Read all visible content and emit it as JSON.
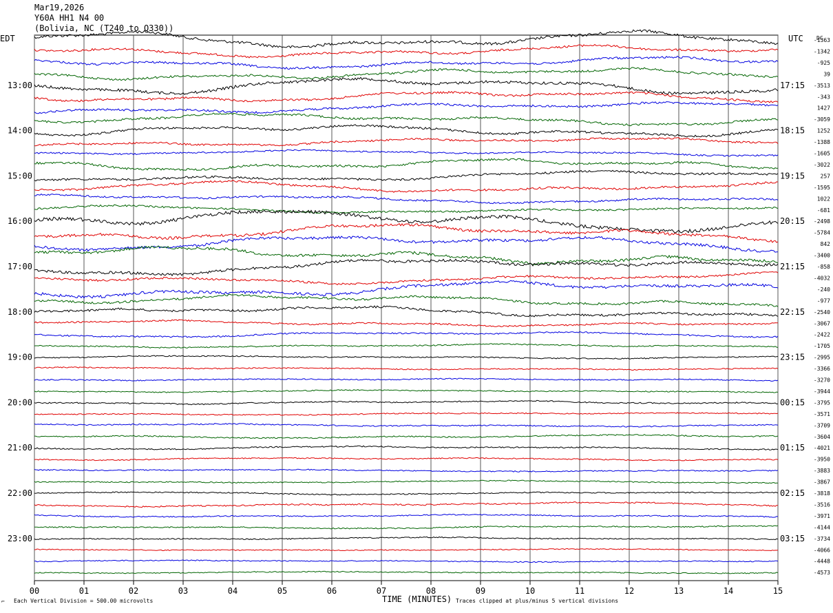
{
  "header": {
    "date": "Mar19,2026",
    "station": "Y60A HH1 N4 00",
    "location": "(Bolivia, NC (T240 to Q330))"
  },
  "axes": {
    "left_title": "EDT",
    "right_title": "UTC",
    "dc_title": "DC",
    "x_title": "TIME (MINUTES)"
  },
  "footer": {
    "scale_note": "Each Vertical Division =  500.00 microvolts",
    "clip_note": "Traces clipped at plus/minus 5 vertical divisions"
  },
  "chart_data": {
    "type": "line",
    "title": "",
    "xlabel": "TIME (MINUTES)",
    "xlim": [
      0,
      15
    ],
    "x_ticks": [
      "00",
      "01",
      "02",
      "03",
      "04",
      "05",
      "06",
      "07",
      "08",
      "09",
      "10",
      "11",
      "12",
      "13",
      "14",
      "15"
    ],
    "grid": "vertical lines at each minute",
    "trace_colors": [
      "#000000",
      "#e00000",
      "#0000e0",
      "#006400"
    ],
    "edt_labels": [
      "13:00",
      "14:00",
      "15:00",
      "16:00",
      "17:00",
      "18:00",
      "19:00",
      "20:00",
      "21:00",
      "22:00",
      "23:00"
    ],
    "utc_labels": [
      "17:15",
      "18:15",
      "19:15",
      "20:15",
      "21:15",
      "22:15",
      "23:15",
      "00:15",
      "01:15",
      "02:15",
      "03:15"
    ],
    "hour_label_rows": [
      4,
      8,
      12,
      16,
      20,
      24,
      28,
      32,
      36,
      40,
      44
    ],
    "dc_offsets": [
      -1363,
      -1342,
      -925,
      39,
      -3513,
      -343,
      1427,
      -3059,
      1252,
      -1388,
      -1605,
      -3022,
      257,
      -1595,
      1022,
      -681,
      -2498,
      -5784,
      842,
      -3400,
      -858,
      -4032,
      -240,
      -977,
      -2540,
      -3067,
      -2422,
      -1705,
      -2995,
      -3366,
      -3270,
      -3944,
      -3795,
      -3571,
      -3709,
      -3604,
      -4021,
      -3950,
      -3883,
      -3867,
      -3818,
      -3516,
      -3971,
      -4144,
      -3734,
      -4066,
      -4448,
      -4573
    ],
    "row_activity": [
      3,
      2,
      2,
      2,
      3,
      2,
      2,
      2,
      2,
      1.5,
      1,
      2,
      2,
      2,
      1.5,
      1.5,
      4,
      3,
      3,
      3,
      3,
      2,
      3,
      2,
      2,
      1,
      1,
      0.6,
      0.5,
      0.4,
      0.4,
      0.4,
      0.6,
      0.4,
      0.5,
      0.6,
      0.6,
      0.5,
      0.4,
      0.4,
      0.5,
      0.8,
      0.4,
      0.5,
      0.4,
      0.3,
      0.3,
      0.3
    ],
    "trace_count": 48
  }
}
